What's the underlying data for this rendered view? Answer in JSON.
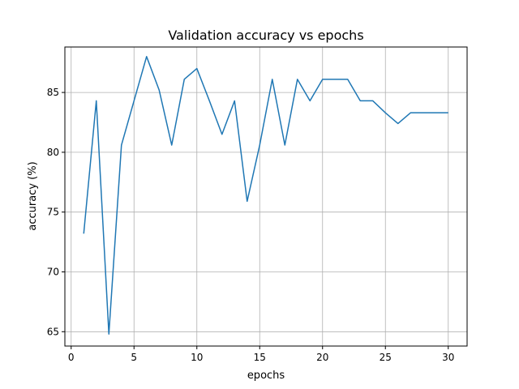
{
  "chart_data": {
    "type": "line",
    "title": "Validation accuracy vs epochs",
    "xlabel": "epochs",
    "ylabel": "accuracy (%)",
    "xlim": [
      -0.5,
      31.5
    ],
    "ylim": [
      63.8,
      88.8
    ],
    "xticks": [
      0,
      5,
      10,
      15,
      20,
      25,
      30
    ],
    "yticks": [
      65,
      70,
      75,
      80,
      85
    ],
    "grid": true,
    "series": [
      {
        "color": "#1f77b4",
        "x": [
          1,
          2,
          3,
          4,
          5,
          6,
          7,
          8,
          9,
          10,
          11,
          12,
          13,
          14,
          15,
          16,
          17,
          18,
          19,
          20,
          21,
          22,
          23,
          24,
          25,
          26,
          27,
          28,
          29,
          30
        ],
        "y": [
          73.2,
          84.3,
          64.8,
          80.6,
          84.3,
          88.0,
          85.2,
          80.6,
          86.1,
          87.0,
          84.3,
          81.5,
          84.3,
          75.9,
          80.6,
          86.1,
          80.6,
          86.1,
          84.3,
          86.1,
          86.1,
          86.1,
          84.3,
          84.3,
          83.3,
          82.4,
          83.3,
          83.3,
          83.3,
          83.3
        ]
      }
    ]
  }
}
